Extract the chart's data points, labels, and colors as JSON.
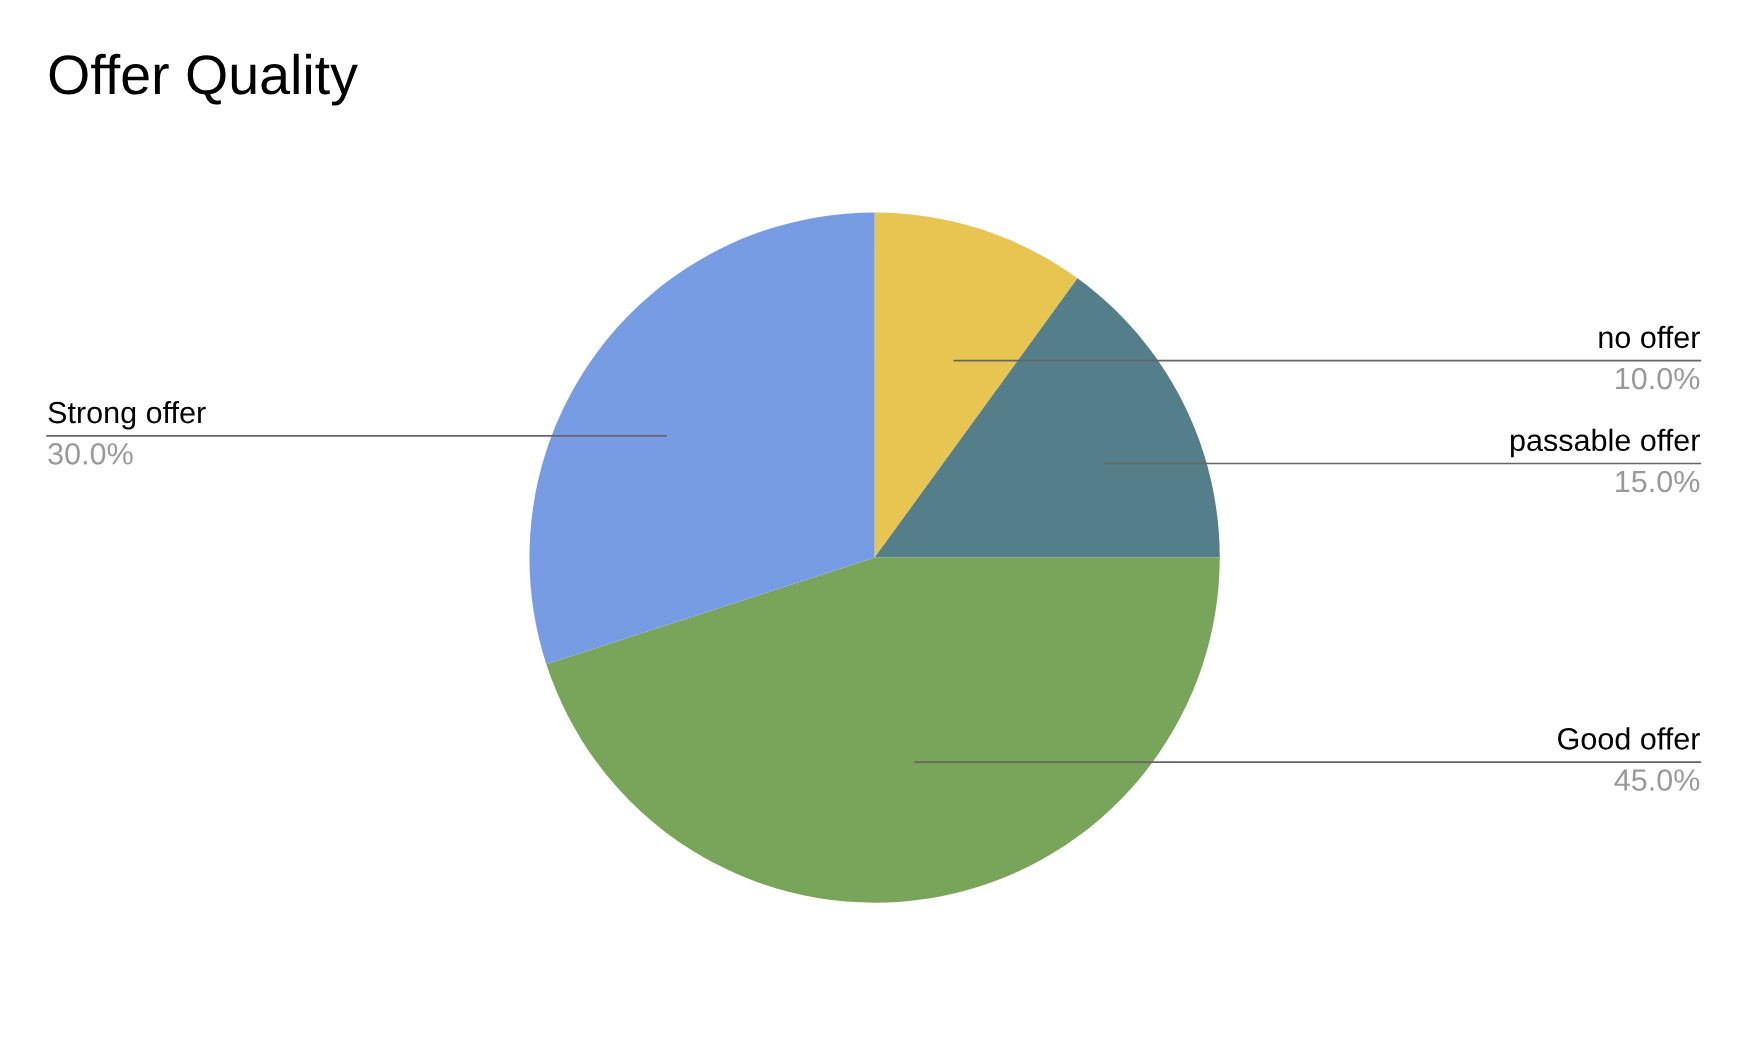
{
  "chart_data": {
    "type": "pie",
    "title": "Offer Quality",
    "categories": [
      "no offer",
      "passable offer",
      "Good offer",
      "Strong offer"
    ],
    "values": [
      10,
      15,
      45,
      30
    ],
    "value_labels": [
      "10.0%",
      "15.0%",
      "45.0%",
      "30.0%"
    ],
    "colors": [
      "#e8c451",
      "#547e8a",
      "#78a55a",
      "#779ce3"
    ],
    "legend": false
  }
}
